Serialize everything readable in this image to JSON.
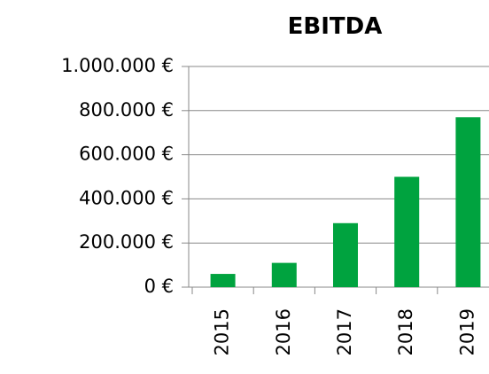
{
  "chart_data": {
    "type": "bar",
    "title": "EBITDA",
    "categories": [
      "2015",
      "2016",
      "2017",
      "2018",
      "2019"
    ],
    "values": [
      60000,
      110000,
      290000,
      500000,
      770000
    ],
    "color": "#00a33f",
    "ylim": [
      0,
      1000000
    ],
    "yticks": [
      {
        "value": 0,
        "label": "0 €"
      },
      {
        "value": 200000,
        "label": "200.000 €"
      },
      {
        "value": 400000,
        "label": "400.000 €"
      },
      {
        "value": 600000,
        "label": "600.000 €"
      },
      {
        "value": 800000,
        "label": "800.000 €"
      },
      {
        "value": 1000000,
        "label": "1.000.000 €"
      }
    ],
    "grid": true
  }
}
